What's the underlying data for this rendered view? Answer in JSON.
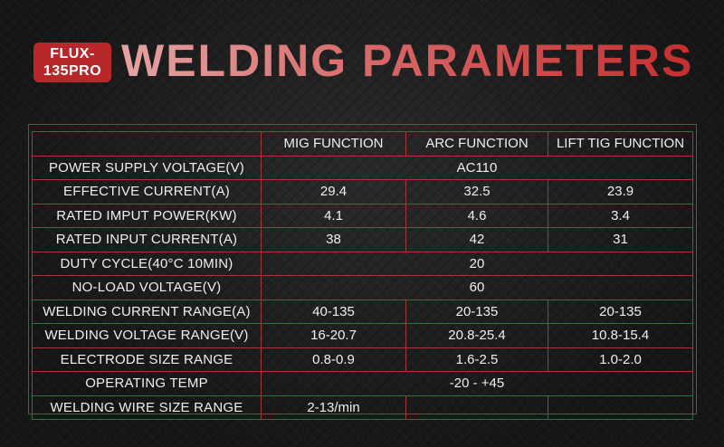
{
  "badge": {
    "line1": "FLUX-",
    "line2": "135PRO"
  },
  "title": "WELDING PARAMETERS",
  "table": {
    "headers": [
      "",
      "MIG FUNCTION",
      "ARC FUNCTION",
      "LIFT TIG FUNCTION"
    ],
    "rows": [
      {
        "label": "POWER SUPPLY VOLTAGE(V)",
        "merged": "AC110"
      },
      {
        "label": "EFFECTIVE CURRENT(A)",
        "values": [
          "29.4",
          "32.5",
          "23.9"
        ]
      },
      {
        "label": "RATED IMPUT POWER(KW)",
        "values": [
          "4.1",
          "4.6",
          "3.4"
        ]
      },
      {
        "label": "RATED INPUT CURRENT(A)",
        "values": [
          "38",
          "42",
          "31"
        ]
      },
      {
        "label": "DUTY CYCLE(40°C 10MIN)",
        "merged": "20"
      },
      {
        "label": "NO-LOAD VOLTAGE(V)",
        "merged": "60"
      },
      {
        "label": "WELDING CURRENT RANGE(A)",
        "values": [
          "40-135",
          "20-135",
          "20-135"
        ]
      },
      {
        "label": "WELDING VOLTAGE RANGE(V)",
        "values": [
          "16-20.7",
          "20.8-25.4",
          "10.8-15.4"
        ]
      },
      {
        "label": "ELECTRODE SIZE RANGE",
        "values": [
          "0.8-0.9",
          "1.6-2.5",
          "1.0-2.0"
        ]
      },
      {
        "label": "OPERATING TEMP",
        "merged": "-20 - +45"
      },
      {
        "label": "WELDING WIRE SIZE RANGE",
        "values": [
          "2-13/min",
          "",
          ""
        ]
      }
    ]
  },
  "colors": {
    "accent": "#b8282b",
    "grid": "#a83636",
    "background": "#1b1b1c"
  }
}
